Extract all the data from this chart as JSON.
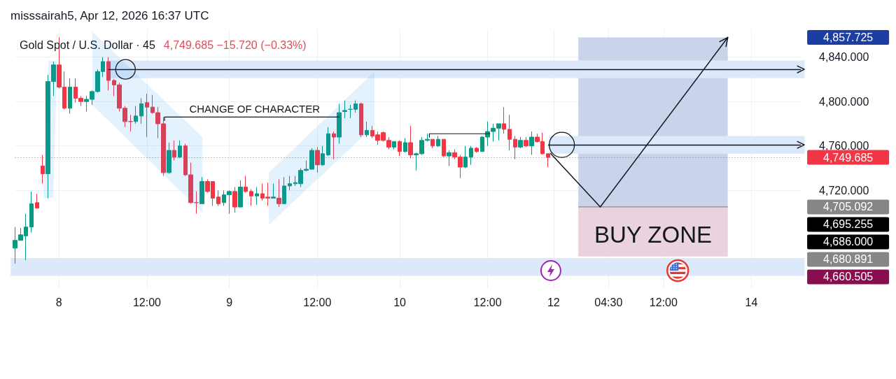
{
  "chart_data": {
    "type": "candlestick",
    "title": "Gold Spot / U.S. Dollar · 45",
    "subtitle": "4,749.685 −15.720 (−0.33%)",
    "annotations": [
      "misssairah5, Apr 12, 2026 16:37 UTC",
      "CHANGE OF CHARACTER",
      "4,857.725",
      "4,705.092",
      "4,695.255",
      "4,686.000",
      "4,680.891",
      "4,660.505"
    ],
    "categories": [
      null,
      null,
      null,
      null,
      null,
      null,
      null,
      null,
      "8",
      null,
      null,
      null,
      null,
      null,
      null,
      null,
      null,
      null,
      null,
      null,
      null,
      null,
      null,
      null,
      "12:00",
      null,
      null,
      null,
      null,
      null,
      null,
      null,
      null,
      null,
      null,
      null,
      null,
      null,
      null,
      "9",
      null,
      null,
      null,
      null,
      null,
      null,
      null,
      null,
      null,
      null,
      null,
      null,
      null,
      null,
      null,
      "12:00",
      null,
      null,
      null,
      null,
      null,
      null,
      null,
      null,
      null,
      null,
      null,
      null,
      null,
      null,
      "10",
      null,
      null,
      null,
      null,
      null,
      null,
      null,
      null,
      null,
      null,
      null,
      null,
      null,
      null,
      null,
      "12:00",
      null,
      null,
      null,
      null,
      null,
      null,
      null,
      null,
      null,
      null,
      null,
      "12",
      null,
      null,
      null,
      null,
      null,
      null,
      null,
      null,
      null,
      "04:30",
      null,
      null,
      null,
      null,
      null,
      null,
      null,
      null,
      null,
      "12:00",
      null,
      null,
      null,
      null,
      null,
      null,
      null,
      null,
      null,
      null,
      null,
      null,
      null,
      null,
      null,
      "14",
      null,
      null,
      null,
      null,
      null,
      null,
      null,
      null,
      null
    ],
    "ohlc": [
      [
        4668,
        4687,
        4654,
        4675
      ],
      [
        4675,
        4686,
        4675,
        4680
      ],
      [
        4679,
        4699,
        4657,
        4687
      ],
      [
        4687,
        4719,
        4682,
        4708
      ],
      [
        4709,
        4717,
        4704,
        4704
      ],
      [
        4742,
        4752,
        4726,
        4735
      ],
      [
        4735,
        4824,
        4713,
        4818
      ],
      [
        4818,
        4836,
        4805,
        4833
      ],
      [
        4833,
        4858,
        4812,
        4813
      ],
      [
        4813,
        4827,
        4793,
        4794
      ],
      [
        4794,
        4821,
        4789,
        4813
      ],
      [
        4813,
        4821,
        4799,
        4803
      ],
      [
        4803,
        4805,
        4796,
        4800
      ],
      [
        4800,
        4805,
        4791,
        4802
      ],
      [
        4802,
        4810,
        4797,
        4809
      ],
      [
        4809,
        4829,
        4808,
        4827
      ],
      [
        4827,
        4840,
        4822,
        4836
      ],
      [
        4836,
        4840,
        4810,
        4819
      ],
      [
        4819,
        4820,
        4805,
        4815
      ],
      [
        4815,
        4817,
        4791,
        4794
      ],
      [
        4794,
        4796,
        4777,
        4782
      ],
      [
        4782,
        4788,
        4773,
        4782
      ],
      [
        4782,
        4796,
        4780,
        4787
      ],
      [
        4787,
        4803,
        4780,
        4798
      ],
      [
        4799,
        4807,
        4768,
        4795
      ],
      [
        4795,
        4806,
        4789,
        4790
      ],
      [
        4790,
        4795,
        4767,
        4780
      ],
      [
        4780,
        4786,
        4733,
        4736
      ],
      [
        4736,
        4763,
        4735,
        4756
      ],
      [
        4756,
        4765,
        4747,
        4750
      ],
      [
        4750,
        4765,
        4749,
        4760
      ],
      [
        4760,
        4762,
        4733,
        4734
      ],
      [
        4734,
        4745,
        4708,
        4709
      ],
      [
        4709,
        4719,
        4699,
        4709
      ],
      [
        4708,
        4732,
        4708,
        4728
      ],
      [
        4728,
        4730,
        4718,
        4719
      ],
      [
        4728,
        4728,
        4706,
        4713
      ],
      [
        4714,
        4720,
        4706,
        4708
      ],
      [
        4709,
        4720,
        4706,
        4716
      ],
      [
        4716,
        4720,
        4699,
        4719
      ],
      [
        4719,
        4723,
        4700,
        4705
      ],
      [
        4705,
        4729,
        4705,
        4723
      ],
      [
        4723,
        4733,
        4718,
        4719
      ],
      [
        4719,
        4721,
        4706,
        4715
      ],
      [
        4715,
        4723,
        4707,
        4717
      ],
      [
        4717,
        4726,
        4711,
        4713
      ],
      [
        4714,
        4727,
        4706,
        4713
      ],
      [
        4713,
        4726,
        4713,
        4714
      ],
      [
        4713,
        4730,
        4705,
        4708
      ],
      [
        4708,
        4732,
        4708,
        4724
      ],
      [
        4724,
        4733,
        4720,
        4726
      ],
      [
        4726,
        4733,
        4724,
        4727
      ],
      [
        4726,
        4740,
        4723,
        4738
      ],
      [
        4738,
        4747,
        4737,
        4739
      ],
      [
        4739,
        4758,
        4739,
        4756
      ],
      [
        4756,
        4759,
        4736,
        4743
      ],
      [
        4743,
        4760,
        4742,
        4753
      ],
      [
        4752,
        4777,
        4751,
        4771
      ],
      [
        4771,
        4773,
        4748,
        4768
      ],
      [
        4768,
        4798,
        4762,
        4790
      ],
      [
        4791,
        4801,
        4785,
        4792
      ],
      [
        4793,
        4797,
        4785,
        4793
      ],
      [
        4793,
        4801,
        4790,
        4798
      ],
      [
        4798,
        4799,
        4768,
        4770
      ],
      [
        4770,
        4782,
        4768,
        4774
      ],
      [
        4774,
        4778,
        4767,
        4769
      ],
      [
        4770,
        4773,
        4761,
        4765
      ],
      [
        4772,
        4773,
        4764,
        4765
      ],
      [
        4765,
        4768,
        4757,
        4759
      ],
      [
        4759,
        4764,
        4757,
        4764
      ],
      [
        4764,
        4765,
        4751,
        4755
      ],
      [
        4755,
        4767,
        4754,
        4763
      ],
      [
        4763,
        4778,
        4749,
        4752
      ],
      [
        4752,
        4754,
        4738,
        4753
      ],
      [
        4753,
        4768,
        4752,
        4765
      ],
      [
        4765,
        4771,
        4764,
        4766
      ],
      [
        4766,
        4766,
        4758,
        4760
      ],
      [
        4760,
        4769,
        4759,
        4766
      ],
      [
        4766,
        4766,
        4750,
        4751
      ],
      [
        4751,
        4756,
        4742,
        4754
      ],
      [
        4754,
        4757,
        4748,
        4750
      ],
      [
        4750,
        4752,
        4731,
        4741
      ],
      [
        4741,
        4760,
        4740,
        4750
      ],
      [
        4750,
        4760,
        4743,
        4758
      ],
      [
        4758,
        4759,
        4754,
        4755
      ],
      [
        4755,
        4769,
        4755,
        4768
      ],
      [
        4768,
        4782,
        4760,
        4773
      ],
      [
        4773,
        4780,
        4764,
        4776
      ],
      [
        4776,
        4780,
        4765,
        4780
      ],
      [
        4780,
        4795,
        4771,
        4775
      ],
      [
        4775,
        4788,
        4756,
        4766
      ],
      [
        4766,
        4769,
        4748,
        4759
      ],
      [
        4759,
        4768,
        4758,
        4765
      ],
      [
        4765,
        4768,
        4759,
        4760
      ],
      [
        4760,
        4773,
        4752,
        4768
      ],
      [
        4768,
        4771,
        4763,
        4764
      ],
      [
        4764,
        4772,
        4752,
        4753
      ],
      [
        4753,
        4753,
        4741,
        4749.685
      ],
      null,
      null,
      null,
      null,
      null,
      null,
      null,
      null,
      null,
      null,
      null,
      null,
      null,
      null,
      null,
      null,
      null,
      null,
      null,
      null,
      null,
      null,
      null,
      null,
      null,
      null,
      null,
      null,
      null,
      null,
      null,
      null,
      null,
      null,
      null,
      null,
      null,
      null,
      null,
      null,
      null,
      null,
      null,
      null,
      null,
      null
    ],
    "colors": [
      "#089981",
      "#089981",
      "#089981",
      "#089981",
      "#f23645",
      "#f23645",
      "#089981",
      "#089981",
      "#f23645",
      "#f23645",
      "#089981",
      "#f23645",
      "#f23645",
      "#089981",
      "#089981",
      "#089981",
      "#089981",
      "#f23645",
      "#f23645",
      "#f23645",
      "#f23645",
      "#f23645",
      "#089981",
      "#089981",
      "#f23645",
      "#f23645",
      "#f23645",
      "#f23645",
      "#089981",
      "#f23645",
      "#089981",
      "#f23645",
      "#f23645",
      "#f23645",
      "#089981",
      "#f23645",
      "#f23645",
      "#f23645",
      "#089981",
      "#089981",
      "#f23645",
      "#089981",
      "#f23645",
      "#f23645",
      "#089981",
      "#f23645",
      "#f23645",
      "#089981",
      "#f23645",
      "#089981",
      "#089981",
      "#089981",
      "#089981",
      "#089981",
      "#089981",
      "#f23645",
      "#089981",
      "#089981",
      "#f23645",
      "#089981",
      "#089981",
      "#089981",
      "#089981",
      "#f23645",
      "#089981",
      "#f23645",
      "#f23645",
      "#f23645",
      "#f23645",
      "#089981",
      "#f23645",
      "#089981",
      "#f23645",
      "#089981",
      "#089981",
      "#089981",
      "#f23645",
      "#089981",
      "#f23645",
      "#089981",
      "#f23645",
      "#f23645",
      "#089981",
      "#089981",
      "#f23645",
      "#089981",
      "#089981",
      "#089981",
      "#089981",
      "#f23645",
      "#f23645",
      "#f23645",
      "#089981",
      "#f23645",
      "#089981",
      "#f23645",
      "#f23645",
      "#f23645",
      null,
      null,
      null,
      null,
      null,
      null,
      null,
      null,
      null,
      null,
      null,
      null,
      null,
      null,
      null,
      null,
      null,
      null,
      null,
      null,
      null,
      null,
      null,
      null,
      null,
      null,
      null,
      null,
      null,
      null,
      null,
      null,
      null,
      null,
      null,
      null,
      null,
      null,
      null,
      null,
      null,
      null,
      null,
      null,
      null,
      null
    ],
    "ylim": [
      4632,
      4865
    ],
    "yticks": [
      {
        "value": 4720,
        "label": "4,720.000"
      },
      {
        "value": 4760,
        "label": "4,760.000"
      },
      {
        "value": 4800,
        "label": "4,800.000"
      },
      {
        "value": 4840,
        "label": "4,840.000"
      }
    ],
    "grid": true,
    "ref_lines": [
      {
        "axis": "y",
        "value": 4749.685,
        "label": "4,749.685",
        "color": "#f23645",
        "line_style": "dotted"
      },
      {
        "axis": "y",
        "value": 4829,
        "color": "#131722",
        "line_style": "solid"
      },
      {
        "axis": "y",
        "value": 4761,
        "color": "#131722",
        "line_style": "solid"
      }
    ],
    "bands": [
      {
        "axis": "y",
        "from": 4705.092,
        "to": 4857.725,
        "color": "#c9d4ea"
      },
      {
        "axis": "y",
        "from": 4660.505,
        "to": 4705.092,
        "label": "BUY ZONE",
        "color": "#ead3de"
      },
      {
        "axis": "y",
        "from": 4821,
        "to": 4837,
        "color": "#dce9fb"
      },
      {
        "axis": "y",
        "from": 4753,
        "to": 4769,
        "color": "#dce9fb"
      },
      {
        "axis": "y",
        "from": 4643,
        "to": 4659,
        "color": "#dce9fb"
      }
    ]
  }
}
